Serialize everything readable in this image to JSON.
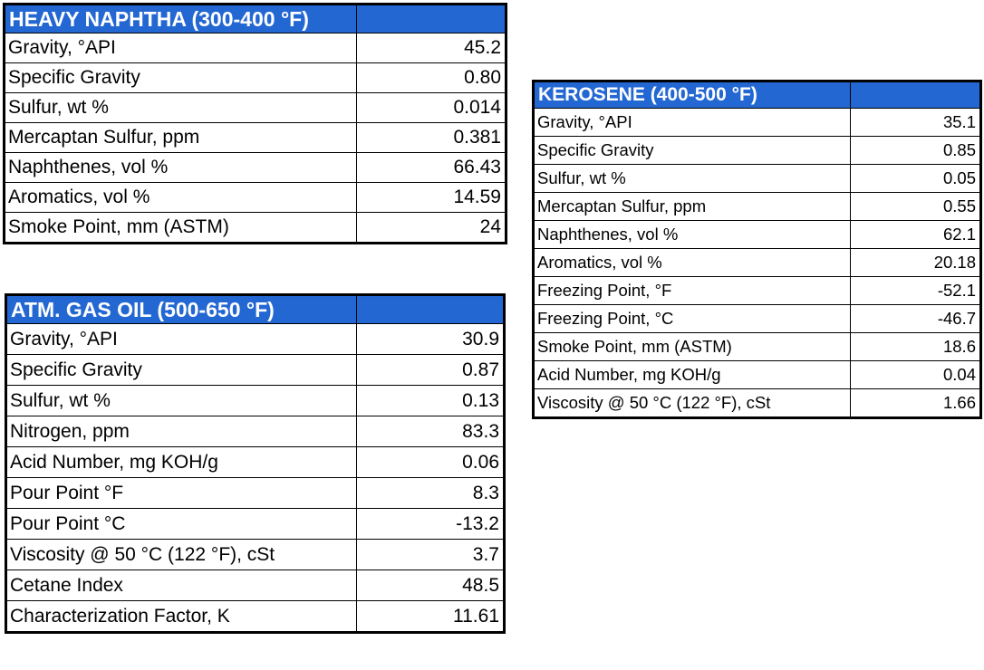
{
  "heavy_naphtha": {
    "title": "HEAVY NAPHTHA (300-400 °F)",
    "rows": [
      {
        "label": "Gravity, °API",
        "value": "45.2"
      },
      {
        "label": "Specific Gravity",
        "value": "0.80"
      },
      {
        "label": "Sulfur, wt %",
        "value": "0.014"
      },
      {
        "label": "Mercaptan Sulfur, ppm",
        "value": "0.381"
      },
      {
        "label": "Naphthenes, vol %",
        "value": "66.43"
      },
      {
        "label": "Aromatics, vol %",
        "value": "14.59"
      },
      {
        "label": "Smoke Point, mm (ASTM)",
        "value": "24"
      }
    ]
  },
  "kerosene": {
    "title": "KEROSENE (400-500 °F)",
    "rows": [
      {
        "label": "Gravity, °API",
        "value": "35.1"
      },
      {
        "label": "Specific Gravity",
        "value": "0.85"
      },
      {
        "label": "Sulfur, wt %",
        "value": "0.05"
      },
      {
        "label": "Mercaptan Sulfur, ppm",
        "value": "0.55"
      },
      {
        "label": "Naphthenes, vol %",
        "value": "62.1"
      },
      {
        "label": "Aromatics, vol %",
        "value": "20.18"
      },
      {
        "label": "Freezing Point, °F",
        "value": "-52.1"
      },
      {
        "label": "Freezing Point, °C",
        "value": "-46.7"
      },
      {
        "label": "Smoke Point, mm (ASTM)",
        "value": "18.6"
      },
      {
        "label": "Acid Number, mg KOH/g",
        "value": "0.04"
      },
      {
        "label": "Viscosity @ 50 °C (122 °F), cSt",
        "value": "1.66"
      }
    ]
  },
  "atm_gas_oil": {
    "title": "ATM. GAS OIL (500-650 °F)",
    "rows": [
      {
        "label": "Gravity, °API",
        "value": "30.9"
      },
      {
        "label": "Specific Gravity",
        "value": "0.87"
      },
      {
        "label": "Sulfur, wt %",
        "value": "0.13"
      },
      {
        "label": "Nitrogen, ppm",
        "value": "83.3"
      },
      {
        "label": "Acid Number, mg KOH/g",
        "value": "0.06"
      },
      {
        "label": "Pour Point °F",
        "value": "8.3"
      },
      {
        "label": "Pour Point °C",
        "value": "-13.2"
      },
      {
        "label": "Viscosity @ 50 °C (122 °F), cSt",
        "value": "3.7"
      },
      {
        "label": "Cetane Index",
        "value": "48.5"
      },
      {
        "label": "Characterization Factor, K",
        "value": "11.61"
      }
    ]
  }
}
